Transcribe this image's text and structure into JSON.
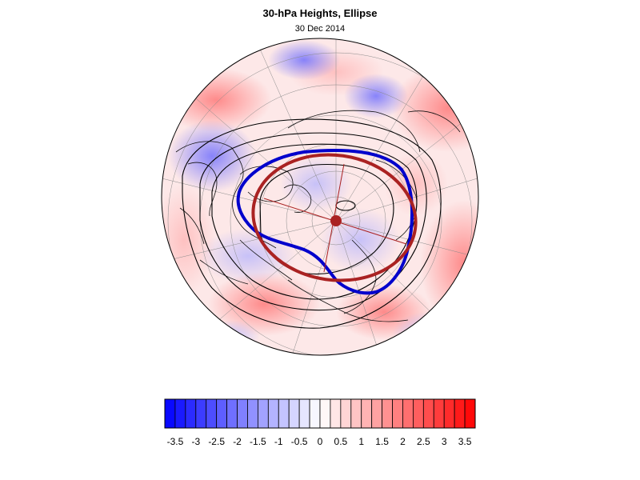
{
  "title": "30-hPa Heights, Ellipse",
  "date": "30 Dec 2014",
  "map": {
    "projection": "north-polar-stereographic",
    "field": "30-hPa height anomaly",
    "contours": "black",
    "vortex_edge_color": "#0000cc",
    "fitted_ellipse_color": "#aa2222",
    "centroid_color": "#aa2222"
  },
  "colorbar": {
    "labels": [
      "-3.5",
      "-3",
      "-2.5",
      "-2",
      "-1.5",
      "-1",
      "-0.5",
      "0",
      "0.5",
      "1",
      "1.5",
      "2",
      "2.5",
      "3",
      "3.5"
    ],
    "min": -3.75,
    "max": 3.75,
    "step": 0.25,
    "colors": {
      "negative": "#0000ff",
      "neutral": "#ffffff",
      "positive": "#ff0000"
    }
  }
}
